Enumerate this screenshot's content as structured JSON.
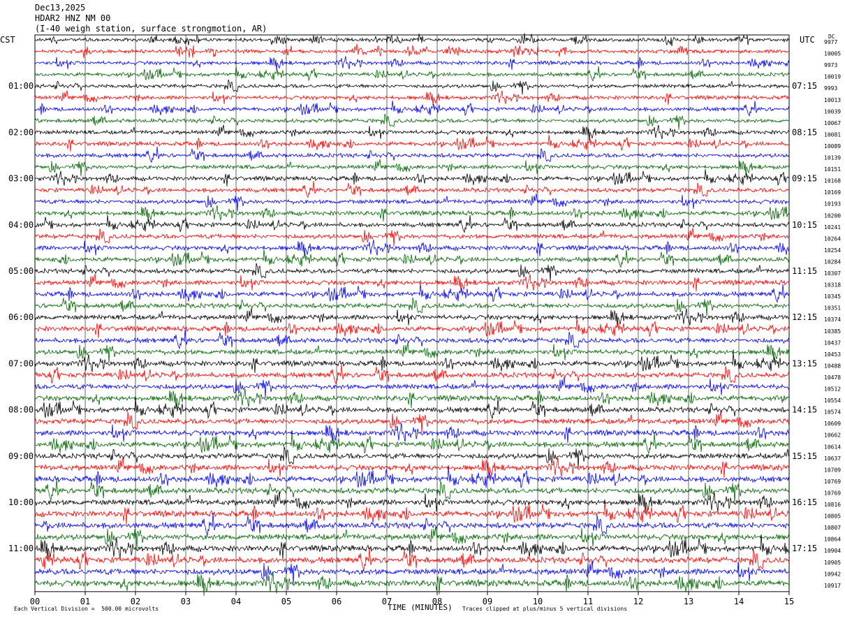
{
  "header": {
    "date": "Dec13,2025",
    "station": "HDAR2 HNZ NM 00",
    "description": "(I-40 weigh station, surface strongmotion, AR)"
  },
  "left_zone_label": "CST",
  "right_zone_label": "UTC",
  "dc_label": "DC",
  "footer": {
    "scale_note": "Each Vertical Division =  500.00 microvolts",
    "clip_note": "Traces clipped at plus/minus 5 vertical divisions"
  },
  "colors": {
    "trace_cycle": [
      "#000000",
      "#ff0000",
      "#0000ff",
      "#006600"
    ],
    "grid": "#000000"
  },
  "chart_data": {
    "type": "line",
    "xlabel": "TIME (MINUTES)",
    "x_ticks": [
      "00",
      "01",
      "02",
      "03",
      "04",
      "05",
      "06",
      "07",
      "08",
      "09",
      "10",
      "11",
      "12",
      "13",
      "14",
      "15"
    ],
    "xlim": [
      0,
      15
    ],
    "grid": true,
    "left_hour_labels": [
      "01:00",
      "02:00",
      "03:00",
      "04:00",
      "05:00",
      "06:00",
      "07:00",
      "08:00",
      "09:00",
      "10:00",
      "11:00"
    ],
    "right_hour_labels": [
      "07:15",
      "08:15",
      "09:15",
      "10:15",
      "11:15",
      "12:15",
      "13:15",
      "14:15",
      "15:15",
      "16:15",
      "17:15"
    ],
    "hour_label_first_row": 4,
    "rows_per_hour": 4,
    "dc_values": [
      "9977",
      "10005",
      "9973",
      "10019",
      "9993",
      "10013",
      "10039",
      "10067",
      "10081",
      "10089",
      "10139",
      "10151",
      "10168",
      "10169",
      "10193",
      "10200",
      "10241",
      "10264",
      "10254",
      "10284",
      "10307",
      "10318",
      "10345",
      "10351",
      "10374",
      "10385",
      "10437",
      "10453",
      "10488",
      "10478",
      "10512",
      "10554",
      "10574",
      "10609",
      "10662",
      "10614",
      "10637",
      "10709",
      "10769",
      "10769",
      "10816",
      "10805",
      "10807",
      "10864",
      "10904",
      "10905",
      "10942",
      "10917"
    ]
  }
}
